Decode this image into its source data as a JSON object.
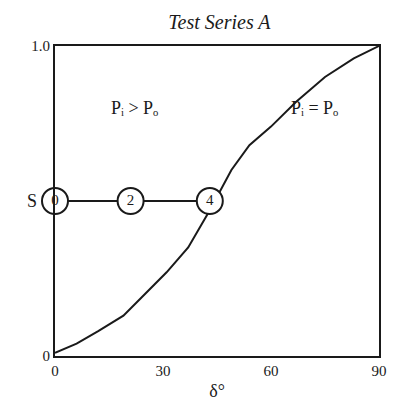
{
  "chart_data": {
    "type": "line",
    "title": "Test Series A",
    "x_label": "δ°",
    "y_label": "S",
    "xlim": [
      0,
      90
    ],
    "ylim": [
      0,
      1
    ],
    "xticks": [
      0,
      30,
      60,
      90
    ],
    "yticks": [
      0,
      {
        "value": 1,
        "label": "1.0"
      }
    ],
    "grid": false,
    "series": [
      {
        "type": "line",
        "color": "#1a1a1a",
        "line_style": "solid",
        "x": [
          0,
          6,
          12,
          19,
          25,
          31,
          37,
          43,
          49,
          54,
          60,
          67,
          75,
          83,
          90
        ],
        "values": [
          0.01,
          0.04,
          0.08,
          0.13,
          0.2,
          0.27,
          0.35,
          0.47,
          0.6,
          0.68,
          0.74,
          0.82,
          0.9,
          0.96,
          1.0
        ]
      },
      {
        "type": "line",
        "color": "#1a1a1a",
        "line_style": "solid",
        "marker": "open_circle",
        "x": [
          0,
          21,
          43
        ],
        "values": [
          0.5,
          0.5,
          0.5
        ],
        "labels": [
          "0",
          "2",
          "4"
        ]
      }
    ],
    "annotations": [
      {
        "text": "Pᵢ > Pₒ",
        "x": 22,
        "y": 0.8
      },
      {
        "text": "Pᵢ = Pₒ",
        "x": 72,
        "y": 0.8
      }
    ]
  }
}
